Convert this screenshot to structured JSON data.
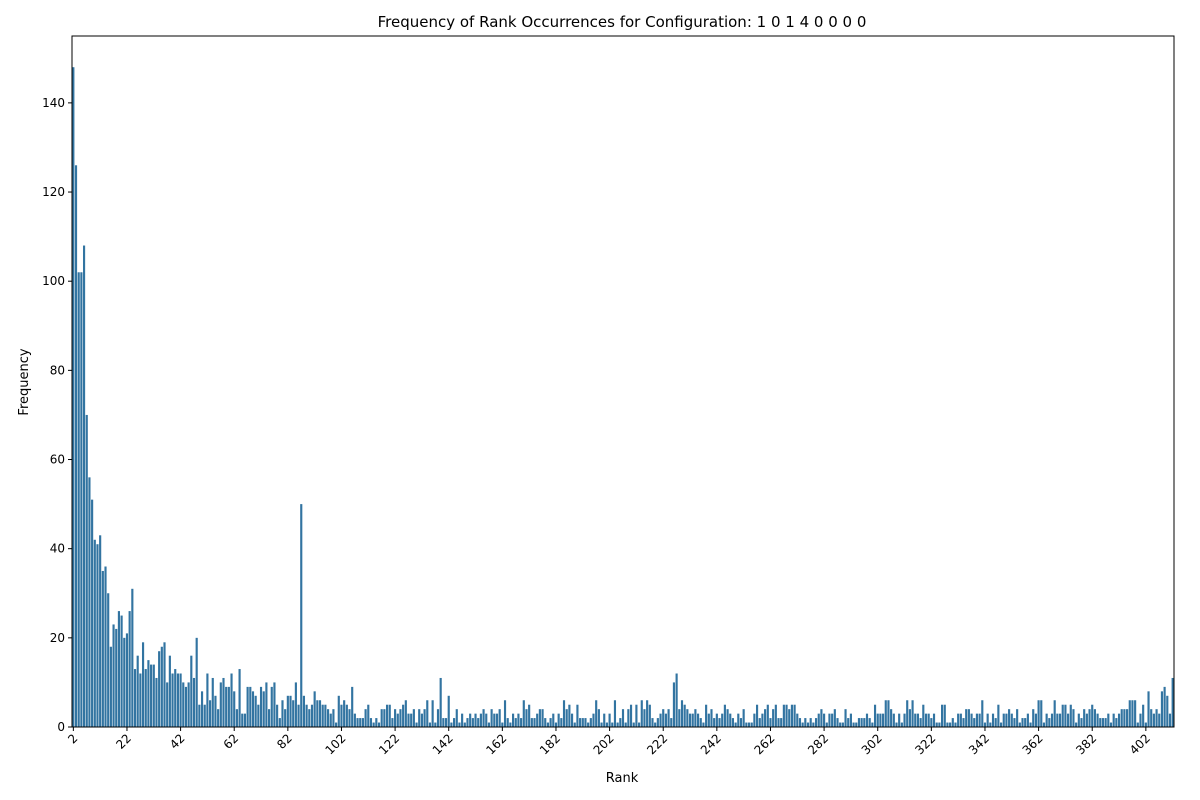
{
  "chart_data": {
    "type": "bar",
    "title": "Frequency of Rank Occurrences for Configuration: 1 0 1 4 0 0 0 0",
    "xlabel": "Rank",
    "ylabel": "Frequency",
    "x_start": 2,
    "x_end": 402,
    "xticks": [
      2,
      22,
      42,
      62,
      82,
      102,
      122,
      142,
      162,
      182,
      202,
      222,
      242,
      262,
      282,
      302,
      322,
      342,
      362,
      382,
      402
    ],
    "yticks": [
      0,
      20,
      40,
      60,
      80,
      100,
      120,
      140
    ],
    "ylim": [
      0,
      155
    ],
    "bar_color": "#3274a1",
    "values": [
      148,
      126,
      102,
      102,
      108,
      70,
      56,
      51,
      42,
      41,
      43,
      35,
      36,
      30,
      18,
      23,
      22,
      26,
      25,
      20,
      21,
      26,
      31,
      13,
      16,
      12,
      19,
      13,
      15,
      14,
      14,
      11,
      17,
      18,
      19,
      10,
      16,
      12,
      13,
      12,
      12,
      10,
      9,
      10,
      16,
      11,
      20,
      5,
      8,
      5,
      12,
      6,
      11,
      7,
      4,
      10,
      11,
      9,
      9,
      12,
      8,
      4,
      13,
      3,
      3,
      9,
      9,
      8,
      7,
      5,
      9,
      8,
      10,
      4,
      9,
      10,
      5,
      2,
      6,
      4,
      7,
      7,
      6,
      10,
      5,
      50,
      7,
      5,
      4,
      5,
      8,
      6,
      6,
      5,
      5,
      4,
      3,
      4,
      1,
      7,
      5,
      6,
      5,
      4,
      9,
      3,
      2,
      2,
      2,
      4,
      5,
      2,
      1,
      2,
      1,
      4,
      4,
      5,
      5,
      2,
      4,
      3,
      4,
      5,
      6,
      3,
      3,
      4,
      1,
      4,
      3,
      4,
      6,
      1,
      6,
      1,
      4,
      11,
      2,
      2,
      7,
      1,
      2,
      4,
      1,
      3,
      1,
      2,
      3,
      2,
      3,
      2,
      3,
      4,
      3,
      1,
      4,
      3,
      3,
      4,
      1,
      6,
      2,
      1,
      3,
      2,
      3,
      2,
      6,
      4,
      5,
      2,
      2,
      3,
      4,
      4,
      2,
      1,
      2,
      3,
      1,
      3,
      2,
      6,
      4,
      5,
      3,
      1,
      5,
      2,
      2,
      2,
      1,
      2,
      3,
      6,
      4,
      1,
      3,
      1,
      3,
      1,
      6,
      1,
      2,
      4,
      1,
      4,
      5,
      1,
      5,
      1,
      6,
      4,
      6,
      5,
      2,
      1,
      2,
      3,
      4,
      3,
      4,
      2,
      10,
      12,
      4,
      6,
      5,
      4,
      3,
      3,
      4,
      3,
      2,
      1,
      5,
      3,
      4,
      2,
      3,
      2,
      3,
      5,
      4,
      3,
      2,
      1,
      3,
      2,
      4,
      1,
      1,
      1,
      3,
      5,
      2,
      3,
      4,
      5,
      2,
      4,
      5,
      2,
      2,
      5,
      5,
      4,
      5,
      5,
      3,
      2,
      1,
      2,
      1,
      2,
      1,
      2,
      3,
      4,
      3,
      1,
      3,
      3,
      4,
      2,
      1,
      1,
      4,
      2,
      3,
      1,
      1,
      2,
      2,
      2,
      3,
      2,
      1,
      5,
      3,
      3,
      3,
      6,
      6,
      4,
      3,
      1,
      3,
      1,
      3,
      6,
      4,
      6,
      3,
      3,
      2,
      5,
      3,
      3,
      2,
      3,
      1,
      1,
      5,
      5,
      1,
      1,
      2,
      1,
      3,
      3,
      2,
      4,
      4,
      3,
      2,
      3,
      3,
      6,
      1,
      3,
      1,
      3,
      2,
      5,
      1,
      3,
      3,
      4,
      3,
      2,
      4,
      1,
      2,
      2,
      3,
      1,
      4,
      3,
      6,
      6,
      1,
      3,
      2,
      3,
      6,
      3,
      3,
      5,
      5,
      3,
      5,
      4,
      1,
      3,
      2,
      4,
      3,
      4,
      5,
      4,
      3,
      2,
      2,
      2,
      3,
      1,
      3,
      2,
      3,
      4,
      4,
      4,
      6,
      6,
      6,
      1,
      3,
      5,
      1,
      8,
      4,
      3,
      4,
      3,
      8,
      9,
      7,
      3,
      11
    ]
  }
}
